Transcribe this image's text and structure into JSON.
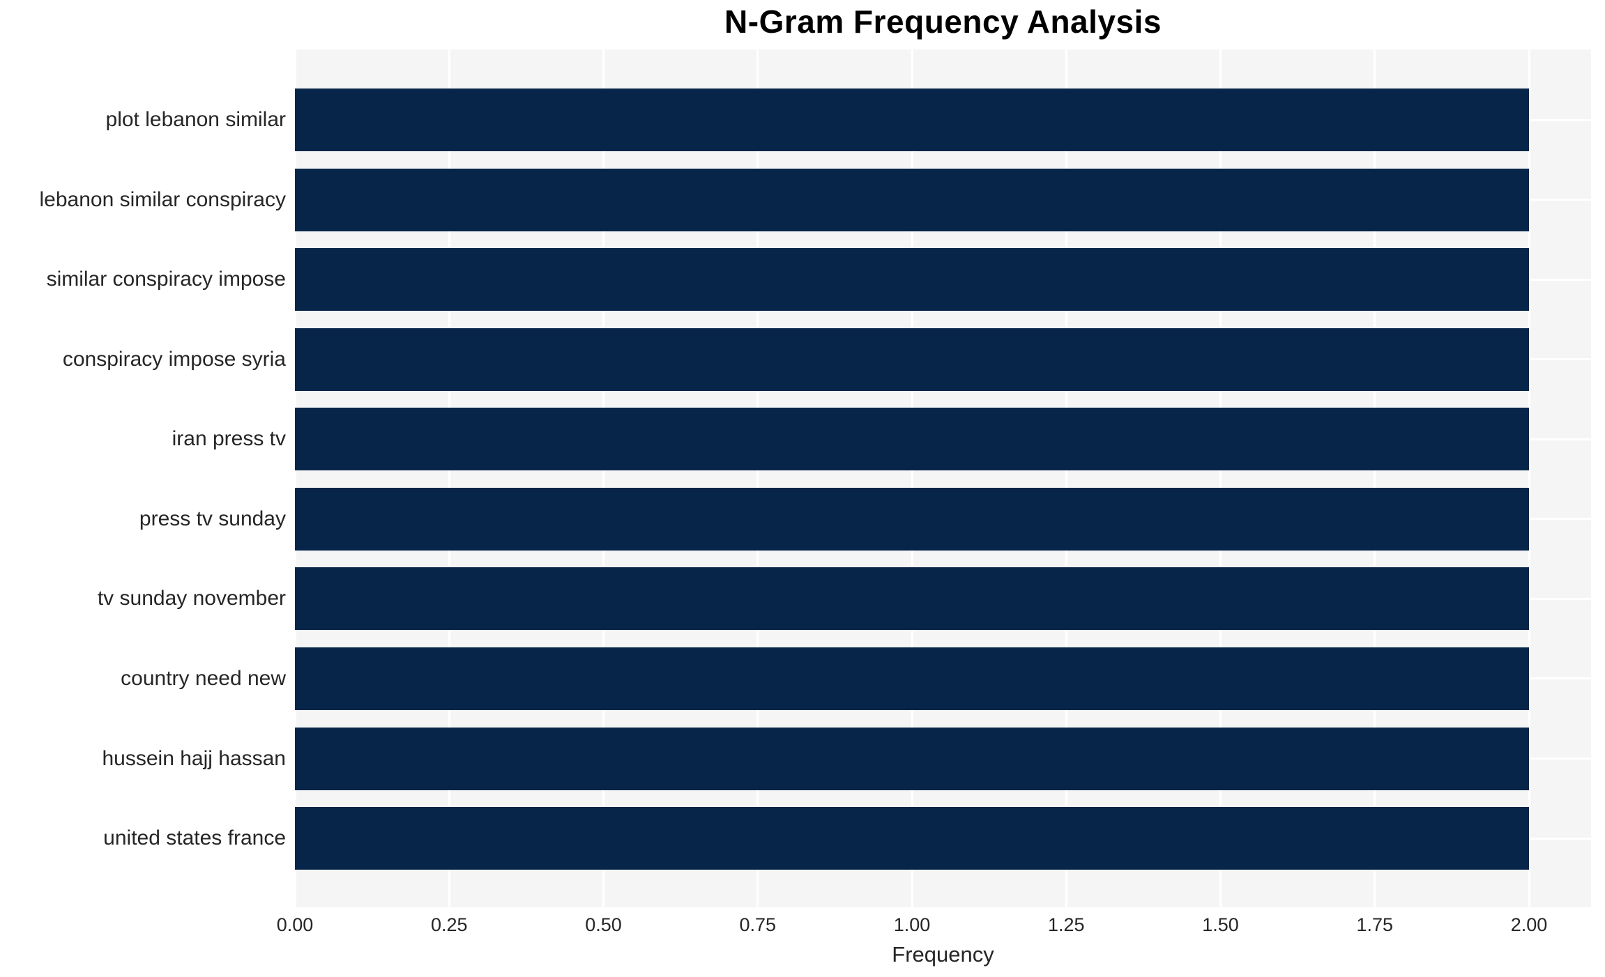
{
  "chart_data": {
    "type": "bar",
    "orientation": "horizontal",
    "title": "N-Gram Frequency Analysis",
    "xlabel": "Frequency",
    "ylabel": "",
    "categories": [
      "plot lebanon similar",
      "lebanon similar conspiracy",
      "similar conspiracy impose",
      "conspiracy impose syria",
      "iran press tv",
      "press tv sunday",
      "tv sunday november",
      "country need new",
      "hussein hajj hassan",
      "united states france"
    ],
    "values": [
      2,
      2,
      2,
      2,
      2,
      2,
      2,
      2,
      2,
      2
    ],
    "xticks": [
      0,
      0.25,
      0.5,
      0.75,
      1.0,
      1.25,
      1.5,
      1.75,
      2.0
    ],
    "xtick_labels": [
      "0.00",
      "0.25",
      "0.50",
      "0.75",
      "1.00",
      "1.25",
      "1.50",
      "1.75",
      "2.00"
    ],
    "xlim": [
      0,
      2.1
    ],
    "grid": true,
    "legend": false,
    "colors": {
      "bar": "#062549",
      "plot_background": "#f5f5f5",
      "gridline": "#ffffff",
      "tick_text": "#262626",
      "title_text": "#000000"
    }
  }
}
